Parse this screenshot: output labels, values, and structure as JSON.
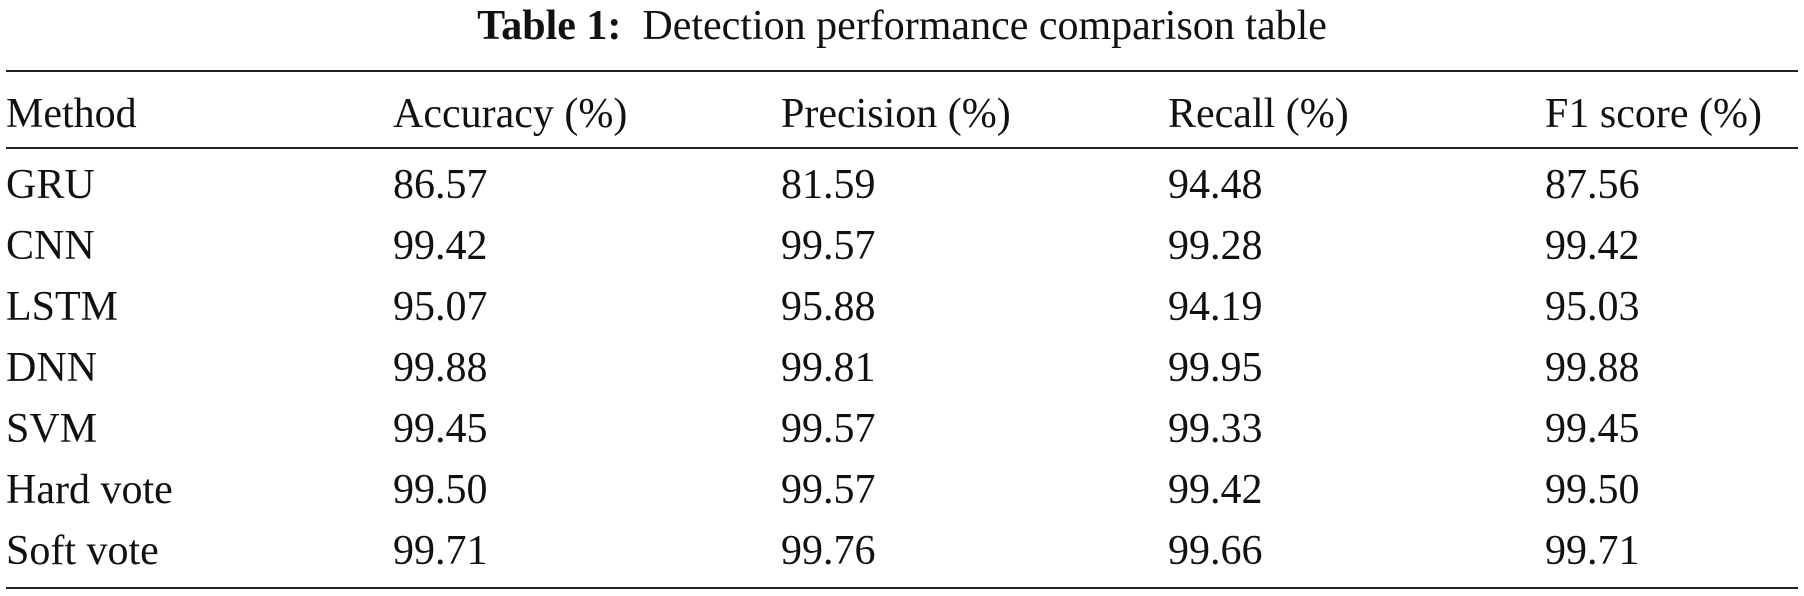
{
  "caption": {
    "label": "Table 1:",
    "text": "Detection performance comparison table"
  },
  "table": {
    "headers": [
      "Method",
      "Accuracy (%)",
      "Precision (%)",
      "Recall (%)",
      "F1 score (%)"
    ],
    "rows": [
      [
        "GRU",
        "86.57",
        "81.59",
        "94.48",
        "87.56"
      ],
      [
        "CNN",
        "99.42",
        "99.57",
        "99.28",
        "99.42"
      ],
      [
        "LSTM",
        "95.07",
        "95.88",
        "94.19",
        "95.03"
      ],
      [
        "DNN",
        "99.88",
        "99.81",
        "99.95",
        "99.88"
      ],
      [
        "SVM",
        "99.45",
        "99.57",
        "99.33",
        "99.45"
      ],
      [
        "Hard vote",
        "99.50",
        "99.57",
        "99.42",
        "99.50"
      ],
      [
        "Soft vote",
        "99.71",
        "99.76",
        "99.66",
        "99.71"
      ]
    ]
  }
}
